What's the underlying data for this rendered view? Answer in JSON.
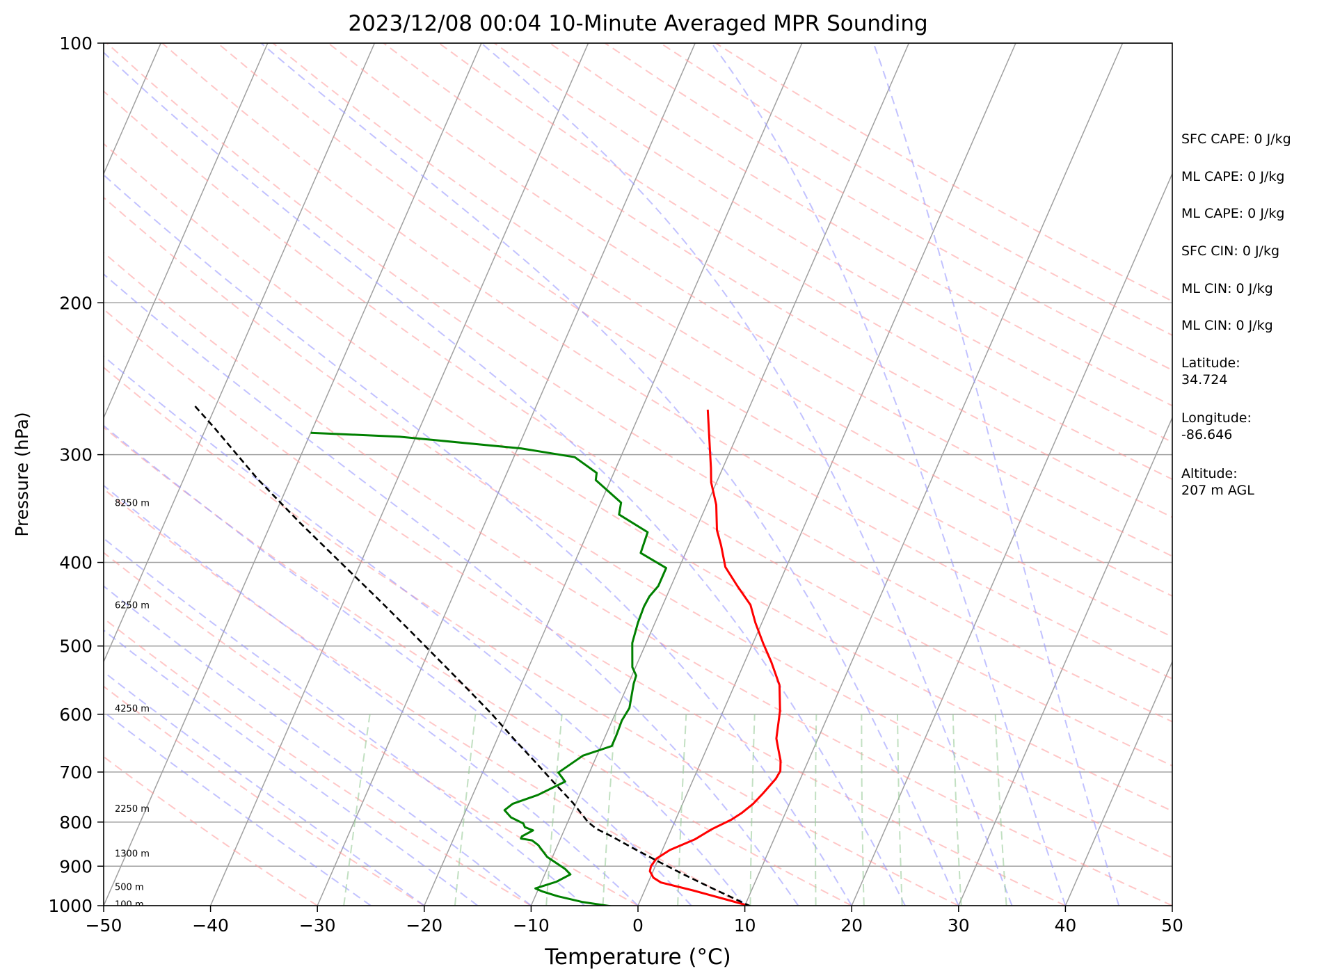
{
  "chart_data": {
    "type": "line",
    "subtype": "skew-t log-p sounding",
    "title": "2023/12/08 00:04 10-Minute Averaged MPR Sounding",
    "xlabel": "Temperature (°C)",
    "ylabel": "Pressure (hPa)",
    "xlim": [
      -50,
      50
    ],
    "ylim": [
      1000,
      100
    ],
    "y_scale": "log",
    "x_ticks": [
      "−50",
      "−40",
      "−30",
      "−20",
      "−10",
      "0",
      "10",
      "20",
      "30",
      "40",
      "50"
    ],
    "y_ticks": [
      "100",
      "200",
      "300",
      "400",
      "500",
      "600",
      "700",
      "800",
      "900",
      "1000"
    ],
    "grid": true,
    "height_labels": [
      {
        "text": "8250 m",
        "pressure": 341
      },
      {
        "text": "6250 m",
        "pressure": 448
      },
      {
        "text": "4250 m",
        "pressure": 590
      },
      {
        "text": "2250 m",
        "pressure": 771
      },
      {
        "text": "1300 m",
        "pressure": 869
      },
      {
        "text": "500 m",
        "pressure": 950
      },
      {
        "text": "100 m",
        "pressure": 995
      }
    ],
    "series": [
      {
        "role": "temperature",
        "color": "#ff0000",
        "points": [
          [
            1002,
            10.6
          ],
          [
            987,
            8.5
          ],
          [
            960,
            4.5
          ],
          [
            940,
            1.2
          ],
          [
            928,
            0.3
          ],
          [
            912,
            -0.3
          ],
          [
            900,
            -0.4
          ],
          [
            882,
            -0.2
          ],
          [
            862,
            0.7
          ],
          [
            838,
            2.6
          ],
          [
            815,
            3.8
          ],
          [
            795,
            5.2
          ],
          [
            781,
            5.9
          ],
          [
            762,
            6.6
          ],
          [
            741,
            7.1
          ],
          [
            713,
            7.7
          ],
          [
            698,
            7.8
          ],
          [
            679,
            7.4
          ],
          [
            661,
            6.8
          ],
          [
            640,
            6.1
          ],
          [
            611,
            5.6
          ],
          [
            594,
            5.3
          ],
          [
            555,
            4.2
          ],
          [
            522,
            2.5
          ],
          [
            497,
            1.0
          ],
          [
            470,
            -0.6
          ],
          [
            448,
            -1.8
          ],
          [
            426,
            -3.8
          ],
          [
            405,
            -5.7
          ],
          [
            382,
            -7.0
          ],
          [
            367,
            -8.0
          ],
          [
            343,
            -9.1
          ],
          [
            323,
            -10.5
          ],
          [
            311,
            -11.1
          ],
          [
            297,
            -11.9
          ],
          [
            277,
            -13.1
          ],
          [
            266,
            -13.8
          ]
        ]
      },
      {
        "role": "dewpoint",
        "color": "#008000",
        "points": [
          [
            1002,
            -2.4
          ],
          [
            990,
            -5.4
          ],
          [
            975,
            -7.9
          ],
          [
            963,
            -9.5
          ],
          [
            955,
            -10.3
          ],
          [
            938,
            -8.6
          ],
          [
            920,
            -7.6
          ],
          [
            907,
            -8.3
          ],
          [
            878,
            -10.5
          ],
          [
            851,
            -11.8
          ],
          [
            840,
            -12.6
          ],
          [
            836,
            -13.7
          ],
          [
            831,
            -13.7
          ],
          [
            818,
            -12.9
          ],
          [
            811,
            -13.8
          ],
          [
            803,
            -14.1
          ],
          [
            790,
            -15.5
          ],
          [
            775,
            -16.4
          ],
          [
            762,
            -15.9
          ],
          [
            744,
            -13.9
          ],
          [
            718,
            -11.9
          ],
          [
            701,
            -12.9
          ],
          [
            670,
            -11.3
          ],
          [
            653,
            -9.0
          ],
          [
            635,
            -9.0
          ],
          [
            610,
            -9.1
          ],
          [
            590,
            -8.9
          ],
          [
            553,
            -9.5
          ],
          [
            541,
            -9.6
          ],
          [
            529,
            -10.3
          ],
          [
            496,
            -11.3
          ],
          [
            470,
            -11.6
          ],
          [
            450,
            -11.7
          ],
          [
            438,
            -11.6
          ],
          [
            426,
            -11.2
          ],
          [
            406,
            -11.2
          ],
          [
            390,
            -14.2
          ],
          [
            369,
            -14.4
          ],
          [
            352,
            -17.8
          ],
          [
            341,
            -18.1
          ],
          [
            321,
            -21.4
          ],
          [
            315,
            -21.6
          ],
          [
            302,
            -24.3
          ],
          [
            295,
            -29.7
          ],
          [
            286,
            -41.5
          ],
          [
            283,
            -50.0
          ]
        ]
      },
      {
        "role": "parcel",
        "color": "#000000",
        "points": [
          [
            1002,
            10.6
          ],
          [
            980,
            8.6
          ],
          [
            950,
            5.8
          ],
          [
            920,
            3.0
          ],
          [
            890,
            0.2
          ],
          [
            860,
            -2.6
          ],
          [
            830,
            -5.4
          ],
          [
            815,
            -7.0
          ],
          [
            800,
            -8.1
          ],
          [
            760,
            -10.3
          ],
          [
            720,
            -12.9
          ],
          [
            680,
            -15.6
          ],
          [
            640,
            -18.5
          ],
          [
            600,
            -21.5
          ],
          [
            560,
            -24.9
          ],
          [
            520,
            -28.6
          ],
          [
            480,
            -32.6
          ],
          [
            440,
            -37.0
          ],
          [
            400,
            -41.9
          ],
          [
            360,
            -47.3
          ],
          [
            320,
            -53.1
          ],
          [
            280,
            -59.1
          ],
          [
            262,
            -62.2
          ]
        ]
      }
    ]
  },
  "stats": {
    "sfc_cape": "SFC CAPE: 0 J/kg",
    "ml_cape": "ML CAPE: 0 J/kg",
    "ml_cape_2": "ML CAPE: 0 J/kg",
    "sfc_cin": "SFC CIN: 0 J/kg",
    "ml_cin": "ML CIN: 0 J/kg",
    "ml_cin_2": "ML CIN: 0 J/kg",
    "latitude_label": "Latitude:",
    "latitude": "34.724",
    "longitude_label": "Longitude:",
    "longitude": "-86.646",
    "altitude_label": "Altitude:",
    "altitude": "207 m AGL"
  },
  "colors": {
    "temperature": "#ff0000",
    "dewpoint": "#008000",
    "parcel": "#000000",
    "isotherm": "#a0a0a0",
    "dry_adiabat": "#ff9999",
    "moist_adiabat": "#9999ff",
    "mixing_ratio": "#99cc99"
  }
}
